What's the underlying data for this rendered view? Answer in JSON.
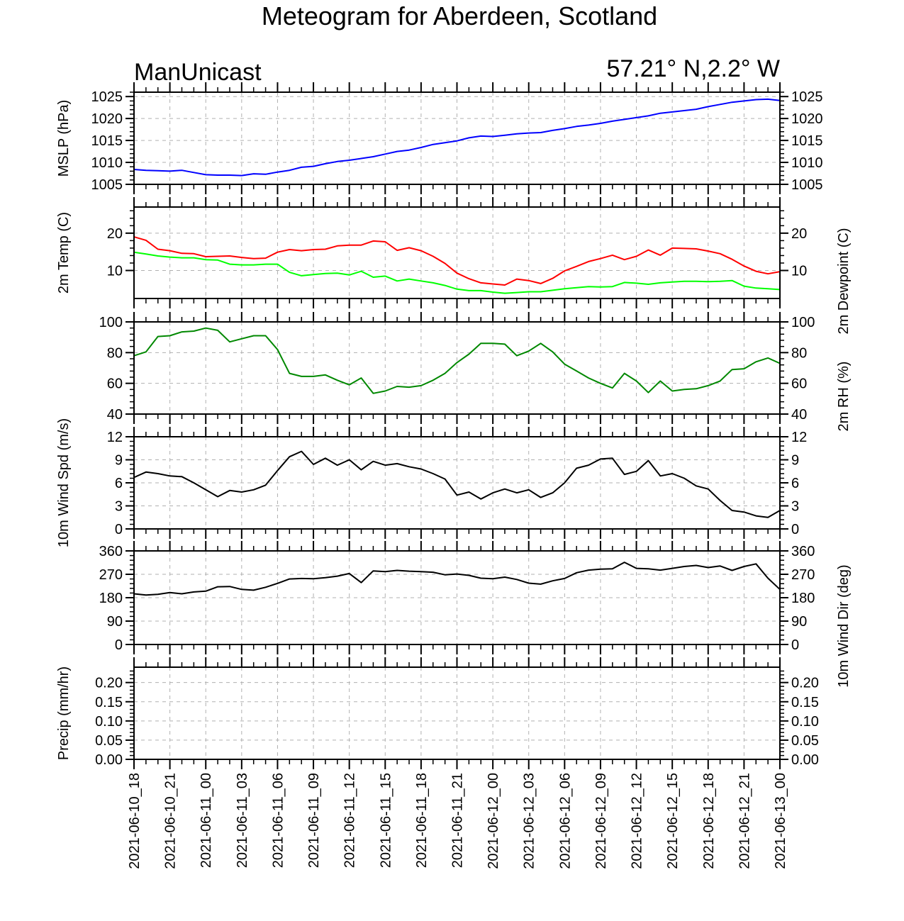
{
  "title": "Meteogram for Aberdeen, Scotland",
  "model_label": "ManUnicast",
  "location_label": "57.21° N,2.2° W",
  "x_tick_labels": [
    "2021-06-10_18",
    "2021-06-10_21",
    "2021-06-11_00",
    "2021-06-11_03",
    "2021-06-11_06",
    "2021-06-11_09",
    "2021-06-11_12",
    "2021-06-11_15",
    "2021-06-11_18",
    "2021-06-11_21",
    "2021-06-12_00",
    "2021-06-12_03",
    "2021-06-12_06",
    "2021-06-12_09",
    "2021-06-12_12",
    "2021-06-12_15",
    "2021-06-12_18",
    "2021-06-12_21",
    "2021-06-13_00"
  ],
  "colors": {
    "mslp": "#0000ff",
    "temp": "#ff0000",
    "dewpoint": "#00ff00",
    "rh": "#008800",
    "wind": "#000000",
    "grid": "#b0b0b0"
  },
  "chart_data": [
    {
      "type": "line",
      "id": "mslp",
      "ylabel": "MSLP (hPa)",
      "ylim": [
        1005,
        1026
      ],
      "yticks": [
        1005,
        1010,
        1015,
        1020,
        1025
      ],
      "series": [
        {
          "values": [
            1008.4,
            1008.2,
            1008.1,
            1008.0,
            1008.2,
            1007.7,
            1007.2,
            1007.1,
            1007.1,
            1007.0,
            1007.4,
            1007.3,
            1007.8,
            1008.2,
            1008.9,
            1009.1,
            1009.7,
            1010.2,
            1010.5,
            1010.9,
            1011.3,
            1011.9,
            1012.5,
            1012.8,
            1013.4,
            1014.1,
            1014.5,
            1014.9,
            1015.6,
            1016.0,
            1015.9,
            1016.2,
            1016.5,
            1016.7,
            1016.8,
            1017.3,
            1017.7,
            1018.2,
            1018.5,
            1018.9,
            1019.4,
            1019.8,
            1020.2,
            1020.6,
            1021.2,
            1021.5,
            1021.8,
            1022.1,
            1022.7,
            1023.2,
            1023.7,
            1024.0,
            1024.3,
            1024.4,
            1024.1
          ]
        }
      ]
    },
    {
      "type": "line",
      "id": "temp",
      "ylabel": "2m Temp (C)",
      "ylabel_right": "2m Dewpoint (C)",
      "ylim": [
        2.5,
        27
      ],
      "yticks": [
        10,
        20
      ],
      "series": [
        {
          "values": [
            19.0,
            18.1,
            15.7,
            15.3,
            14.6,
            14.5,
            13.7,
            13.8,
            13.9,
            13.5,
            13.2,
            13.3,
            14.9,
            15.6,
            15.3,
            15.6,
            15.7,
            16.6,
            16.8,
            16.8,
            17.9,
            17.7,
            15.4,
            16.1,
            15.3,
            13.8,
            11.9,
            9.3,
            7.8,
            6.7,
            6.4,
            6.1,
            7.7,
            7.3,
            6.5,
            7.9,
            9.9,
            11.1,
            12.4,
            13.2,
            14.1,
            12.9,
            13.8,
            15.5,
            14.1,
            16.0,
            15.9,
            15.8,
            15.2,
            14.5,
            13.0,
            11.2,
            9.8,
            9.1,
            9.7
          ]
        },
        {
          "values": [
            14.9,
            14.4,
            13.9,
            13.6,
            13.4,
            13.4,
            12.9,
            12.8,
            11.7,
            11.5,
            11.5,
            11.7,
            11.7,
            9.5,
            8.6,
            8.9,
            9.2,
            9.3,
            8.8,
            9.8,
            8.2,
            8.5,
            7.2,
            7.7,
            7.2,
            6.7,
            6.0,
            5.0,
            4.6,
            4.6,
            4.2,
            3.9,
            4.1,
            4.3,
            4.3,
            4.7,
            5.1,
            5.4,
            5.7,
            5.6,
            5.7,
            6.8,
            6.6,
            6.3,
            6.7,
            6.9,
            7.1,
            7.1,
            7.0,
            7.1,
            7.3,
            5.8,
            5.3,
            5.1,
            4.9
          ]
        }
      ]
    },
    {
      "type": "line",
      "id": "rh",
      "ylabel_right": "2m RH (%)",
      "ylim": [
        40,
        100
      ],
      "yticks": [
        40,
        60,
        80,
        100
      ],
      "series": [
        {
          "values": [
            78,
            80.5,
            90.5,
            91,
            93.5,
            94,
            96,
            94.5,
            87,
            89,
            91,
            91,
            82,
            66.5,
            64.5,
            64.5,
            65.5,
            62,
            59,
            63.5,
            53.5,
            55,
            58,
            57.5,
            58.5,
            62,
            66.5,
            73.5,
            79,
            86,
            86,
            85.5,
            78,
            81,
            86,
            80.5,
            72.5,
            68,
            63.5,
            60,
            57,
            66.5,
            61.5,
            54,
            61.5,
            55,
            56,
            56.5,
            58.5,
            61.5,
            69,
            69.5,
            74,
            76.5,
            73
          ]
        }
      ]
    },
    {
      "type": "line",
      "id": "wind_speed",
      "ylabel": "10m Wind Spd (m/s)",
      "ylim": [
        0,
        12
      ],
      "yticks": [
        0,
        3,
        6,
        9,
        12
      ],
      "series": [
        {
          "values": [
            6.7,
            7.4,
            7.2,
            6.9,
            6.8,
            6.0,
            5.1,
            4.2,
            5.0,
            4.8,
            5.1,
            5.7,
            7.6,
            9.4,
            10.1,
            8.4,
            9.2,
            8.3,
            9.0,
            7.7,
            8.8,
            8.3,
            8.5,
            8.1,
            7.8,
            7.2,
            6.5,
            4.4,
            4.8,
            3.9,
            4.7,
            5.2,
            4.7,
            5.1,
            4.1,
            4.7,
            6.0,
            7.9,
            8.3,
            9.1,
            9.2,
            7.1,
            7.5,
            8.9,
            6.9,
            7.2,
            6.6,
            5.6,
            5.2,
            3.7,
            2.4,
            2.2,
            1.7,
            1.5,
            2.4
          ]
        }
      ]
    },
    {
      "type": "line",
      "id": "wind_dir",
      "ylabel_right": "10m Wind Dir (deg)",
      "ylim": [
        0,
        360
      ],
      "yticks": [
        0,
        90,
        180,
        270,
        360
      ],
      "series": [
        {
          "values": [
            195,
            190,
            193,
            200,
            195,
            202,
            205,
            222,
            223,
            212,
            209,
            220,
            235,
            252,
            254,
            253,
            257,
            263,
            273,
            238,
            283,
            280,
            285,
            282,
            280,
            278,
            268,
            271,
            266,
            255,
            253,
            259,
            250,
            236,
            232,
            245,
            254,
            276,
            286,
            290,
            291,
            316,
            293,
            291,
            286,
            293,
            300,
            304,
            296,
            302,
            285,
            300,
            310,
            255,
            212
          ]
        }
      ]
    },
    {
      "type": "line",
      "id": "precip",
      "ylabel": "Precip (mm/hr)",
      "ylim": [
        0,
        0.24
      ],
      "yticks": [
        0.0,
        0.05,
        0.1,
        0.15,
        0.2
      ],
      "ytick_labels": [
        "0.00",
        "0.05",
        "0.10",
        "0.15",
        "0.20"
      ],
      "series": [
        {
          "values": [
            0,
            0,
            0,
            0,
            0,
            0,
            0,
            0,
            0,
            0,
            0,
            0,
            0,
            0,
            0,
            0,
            0,
            0,
            0,
            0,
            0,
            0,
            0,
            0,
            0,
            0,
            0,
            0,
            0,
            0,
            0,
            0,
            0,
            0,
            0,
            0,
            0,
            0,
            0,
            0,
            0,
            0,
            0,
            0,
            0,
            0,
            0,
            0,
            0,
            0,
            0,
            0,
            0,
            0,
            0
          ]
        }
      ]
    }
  ]
}
